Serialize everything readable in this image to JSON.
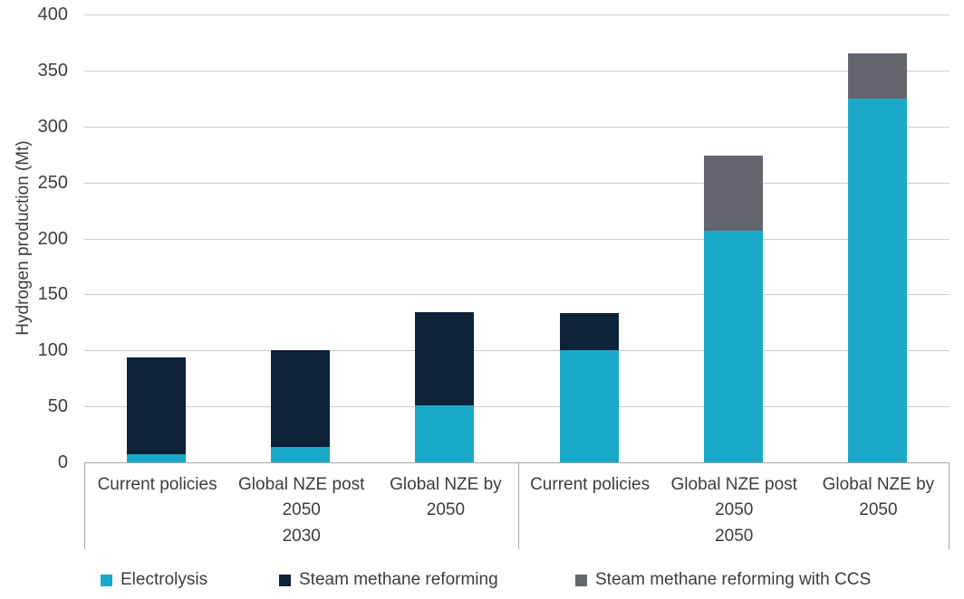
{
  "chart_data": {
    "type": "bar",
    "stacked": true,
    "title": "",
    "xlabel": "",
    "ylabel": "Hydrogen production (Mt)",
    "ylim": [
      0,
      400
    ],
    "ytick_step": 50,
    "yticks": [
      0,
      50,
      100,
      150,
      200,
      250,
      300,
      350,
      400
    ],
    "grid": true,
    "legend_position": "bottom",
    "groups": [
      {
        "label": "2030",
        "categories": [
          "Current policies",
          "Global NZE post\n2050",
          "Global NZE by\n2050"
        ]
      },
      {
        "label": "2050",
        "categories": [
          "Current policies",
          "Global NZE post\n2050",
          "Global NZE by\n2050"
        ]
      }
    ],
    "categories": [
      "Current policies",
      "Global NZE post 2050",
      "Global NZE by 2050",
      "Current policies",
      "Global NZE post 2050",
      "Global NZE by 2050"
    ],
    "series": [
      {
        "name": "Electrolysis",
        "color": "#1ba9c9",
        "values": [
          7,
          14,
          51,
          100,
          207,
          325
        ]
      },
      {
        "name": "Steam methane reforming",
        "color": "#0d2338",
        "values": [
          87,
          86,
          83,
          33,
          0,
          0
        ]
      },
      {
        "name": "Steam methane reforming with CCS",
        "color": "#63666d",
        "values": [
          0,
          0,
          0,
          0,
          67,
          40
        ]
      }
    ]
  },
  "colors": {
    "grid": "#cccccc",
    "axis_border": "#a6a6a6",
    "text": "#3d3d3d",
    "background": "#ffffff"
  }
}
